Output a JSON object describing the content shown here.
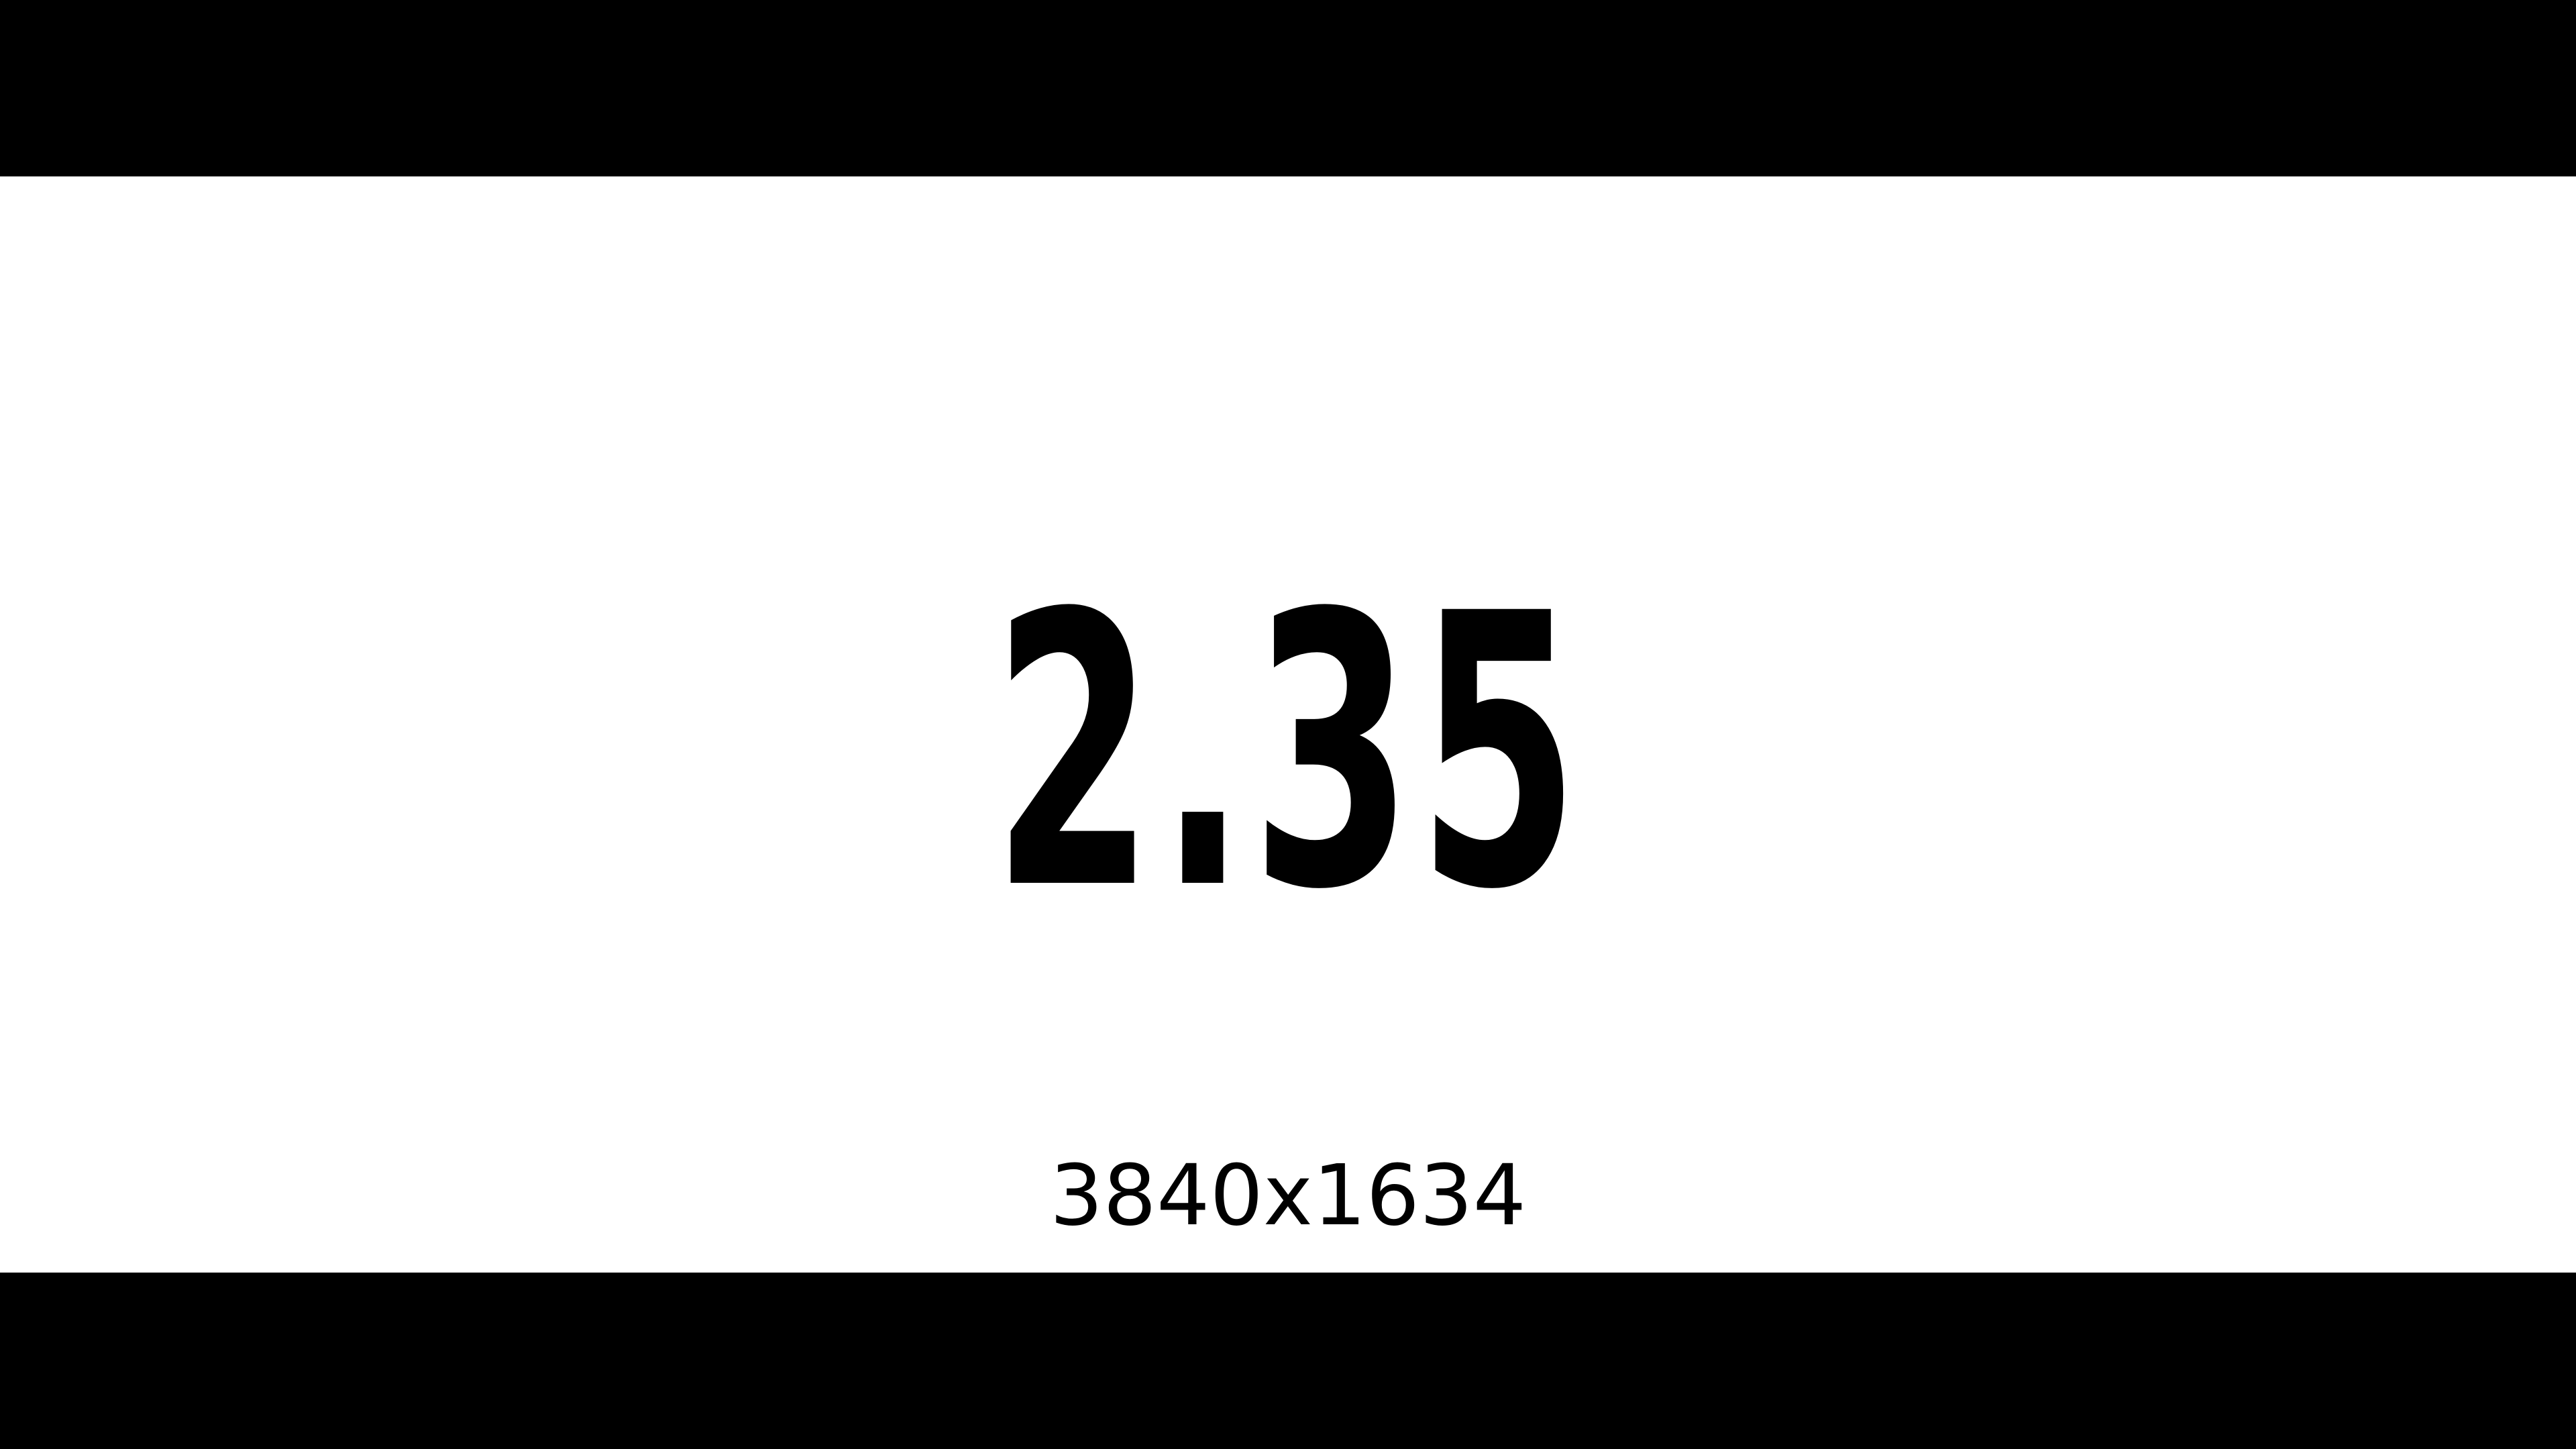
{
  "screen": {
    "aspect_ratio": "2.35",
    "resolution": "3840x1634",
    "colors": {
      "letterbox": "#000000",
      "picture": "#ffffff",
      "text": "#000000"
    }
  }
}
